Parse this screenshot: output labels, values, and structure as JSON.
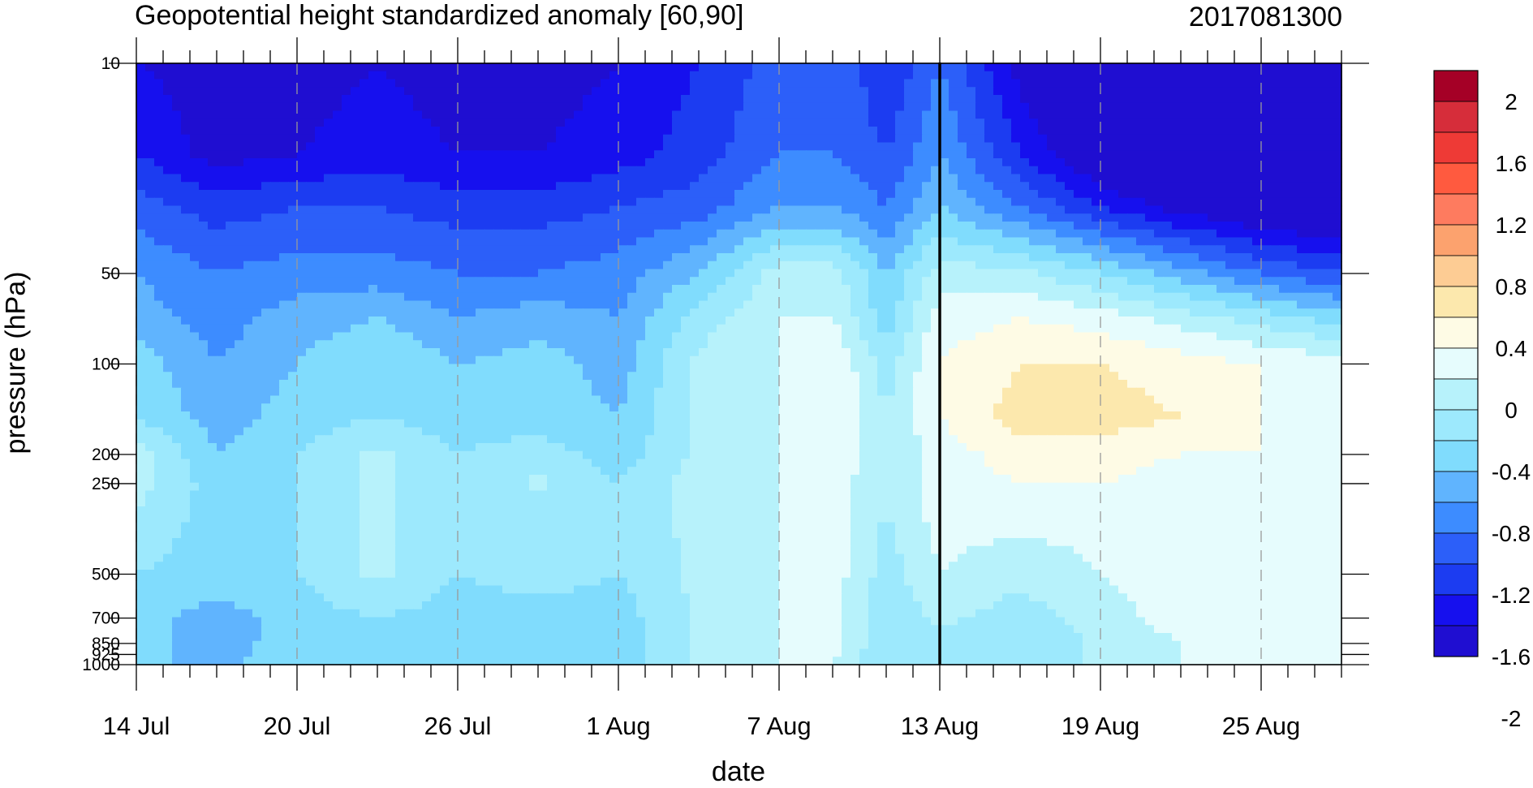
{
  "header": {
    "title": "Geopotential height standardized anomaly [60,90]",
    "date_code": "2017081300"
  },
  "chart_data": {
    "type": "heatmap",
    "title": "Geopotential height standardized anomaly [60,90]",
    "subtitle": "2017081300",
    "xlabel": "date",
    "ylabel": "pressure (hPa)",
    "x_tick_labels": [
      "14 Jul",
      "20 Jul",
      "26 Jul",
      "1 Aug",
      "7 Aug",
      "13 Aug",
      "19 Aug",
      "25 Aug"
    ],
    "x_tick_days": [
      0,
      6,
      12,
      18,
      24,
      30,
      36,
      42
    ],
    "x_range_days": [
      0,
      45
    ],
    "y_scale": "log (reversed)",
    "y_levels_hpa": [
      10,
      50,
      100,
      200,
      250,
      500,
      700,
      850,
      925,
      1000
    ],
    "y_tick_labels": [
      "10",
      "50",
      "100",
      "200",
      "250",
      "500",
      "700",
      "850",
      "925",
      "1000"
    ],
    "ylim": [
      1000,
      10
    ],
    "analysis_day_marker": "13 Aug",
    "colorbar_labels": [
      "2",
      "1.6",
      "1.2",
      "0.8",
      "0.4",
      "0",
      "-0.4",
      "-0.8",
      "-1.2",
      "-1.6",
      "-2"
    ],
    "colorbar_colors": [
      "#a50026",
      "#d62d3a",
      "#ee3a36",
      "#ff5a3f",
      "#fe7b5f",
      "#fca26e",
      "#fdcc94",
      "#fce8ad",
      "#fefbe5",
      "#e6fcfd",
      "#b7f2fb",
      "#9de9fd",
      "#80dcfd",
      "#60b4fe",
      "#3d8cff",
      "#2c5ff9",
      "#1c3cf1",
      "#1610ee",
      "#1f0ed1"
    ],
    "values_grid": {
      "x_days": [
        0,
        3,
        6,
        9,
        12,
        15,
        18,
        21,
        24,
        26,
        28,
        30,
        33,
        36,
        39,
        42,
        45
      ],
      "p_hpa": [
        10,
        20,
        30,
        50,
        70,
        100,
        150,
        200,
        250,
        300,
        500,
        700,
        850,
        1000
      ],
      "rows": [
        [
          -1.4,
          -1.5,
          -1.5,
          -1.4,
          -1.5,
          -1.5,
          -1.4,
          -1.2,
          -0.9,
          -0.8,
          -1.2,
          -0.8,
          -1.5,
          -2.0,
          -2.2,
          -2.3,
          -2.3
        ],
        [
          -1.2,
          -1.5,
          -1.4,
          -1.3,
          -1.4,
          -1.4,
          -1.3,
          -1.1,
          -0.8,
          -0.8,
          -1.0,
          -0.6,
          -1.2,
          -1.7,
          -2.0,
          -2.1,
          -2.2
        ],
        [
          -0.9,
          -1.1,
          -1.0,
          -1.0,
          -1.1,
          -1.1,
          -1.0,
          -0.9,
          -0.6,
          -0.6,
          -0.8,
          -0.4,
          -0.8,
          -1.2,
          -1.5,
          -1.7,
          -1.8
        ],
        [
          -0.6,
          -0.8,
          -0.7,
          -0.7,
          -0.8,
          -0.8,
          -0.7,
          -0.4,
          0.1,
          0.1,
          -0.4,
          0.1,
          0.05,
          -0.2,
          -0.5,
          -0.8,
          -1.0
        ],
        [
          -0.5,
          -0.7,
          -0.5,
          -0.4,
          -0.6,
          -0.5,
          -0.6,
          -0.1,
          0.2,
          0.2,
          -0.3,
          0.3,
          0.4,
          0.3,
          0.1,
          -0.1,
          -0.3
        ],
        [
          -0.3,
          -0.6,
          -0.4,
          -0.2,
          -0.4,
          -0.3,
          -0.5,
          0.05,
          0.2,
          0.4,
          -0.1,
          0.4,
          0.6,
          0.6,
          0.5,
          0.4,
          0.3
        ],
        [
          -0.2,
          -0.5,
          -0.3,
          -0.2,
          -0.3,
          -0.3,
          -0.4,
          0.05,
          0.2,
          0.4,
          0.0,
          0.4,
          0.7,
          0.7,
          0.6,
          0.4,
          0.3
        ],
        [
          0.1,
          -0.4,
          -0.2,
          0.05,
          -0.2,
          -0.1,
          -0.3,
          0.05,
          0.2,
          0.4,
          0.0,
          0.3,
          0.5,
          0.5,
          0.4,
          0.4,
          0.3
        ],
        [
          0.1,
          -0.3,
          -0.2,
          0.05,
          -0.2,
          0.05,
          -0.2,
          0.1,
          0.2,
          0.3,
          0.0,
          0.3,
          0.4,
          0.4,
          0.3,
          0.3,
          0.3
        ],
        [
          0.0,
          -0.3,
          -0.2,
          0.05,
          -0.2,
          -0.1,
          -0.2,
          0.1,
          0.2,
          0.3,
          0.0,
          0.3,
          0.3,
          0.3,
          0.3,
          0.3,
          0.3
        ],
        [
          -0.2,
          -0.3,
          -0.2,
          0.05,
          -0.2,
          -0.1,
          -0.2,
          0.05,
          0.2,
          0.3,
          -0.1,
          0.2,
          0.05,
          0.2,
          0.3,
          0.3,
          0.3
        ],
        [
          -0.3,
          -0.5,
          -0.3,
          -0.2,
          -0.3,
          -0.3,
          -0.3,
          0.05,
          0.2,
          0.3,
          -0.2,
          0.05,
          -0.1,
          0.1,
          0.3,
          0.4,
          0.4
        ],
        [
          -0.3,
          -0.5,
          -0.3,
          -0.2,
          -0.4,
          -0.3,
          -0.3,
          0.05,
          0.2,
          0.3,
          -0.2,
          -0.1,
          -0.2,
          0.05,
          0.2,
          0.4,
          0.4
        ],
        [
          -0.3,
          -0.5,
          -0.2,
          -0.2,
          -0.3,
          -0.3,
          -0.3,
          0.05,
          0.2,
          0.2,
          -0.2,
          -0.1,
          -0.2,
          0.05,
          0.2,
          0.3,
          0.4
        ]
      ]
    }
  }
}
